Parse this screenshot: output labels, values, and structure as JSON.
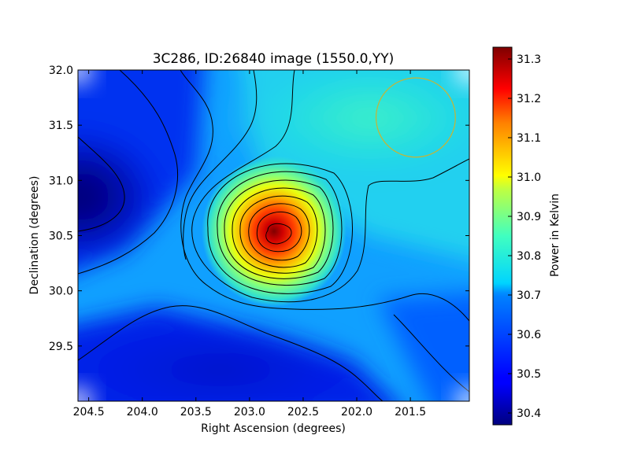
{
  "chart_data": {
    "type": "heatmap",
    "title": "3C286, ID:26840 image (1550.0,YY)",
    "xlabel": "Right Ascension (degrees)",
    "ylabel": "Declination (degrees)",
    "colorbar_label": "Power in Kelvin",
    "xlim": [
      204.6,
      200.95
    ],
    "ylim": [
      29.0,
      32.0
    ],
    "x_ticks": [
      "204.5",
      "204.0",
      "203.5",
      "203.0",
      "202.5",
      "202.0",
      "201.5"
    ],
    "x_tick_values": [
      204.5,
      204.0,
      203.5,
      203.0,
      202.5,
      202.0,
      201.5
    ],
    "y_ticks": [
      "29.5",
      "30.0",
      "30.5",
      "31.0",
      "31.5",
      "32.0"
    ],
    "y_tick_values": [
      29.5,
      30.0,
      30.5,
      31.0,
      31.5,
      32.0
    ],
    "colorbar_range": [
      30.37,
      31.33
    ],
    "colorbar_ticks": [
      "30.4",
      "30.5",
      "30.6",
      "30.7",
      "30.8",
      "30.9",
      "31.0",
      "31.1",
      "31.2",
      "31.3"
    ],
    "colorbar_tick_values": [
      30.4,
      30.5,
      30.6,
      30.7,
      30.8,
      30.9,
      31.0,
      31.1,
      31.2,
      31.3
    ],
    "colormap": "jet",
    "peak": {
      "ra": 202.75,
      "dec": 30.53,
      "value": 31.33
    },
    "secondary_minimum": {
      "ra": 204.45,
      "dec": 30.9,
      "value": 30.37
    },
    "beam_marker": {
      "ra": 201.45,
      "dec": 31.57,
      "radius_deg": 0.37,
      "color": "#c8b432"
    },
    "grid": false
  }
}
